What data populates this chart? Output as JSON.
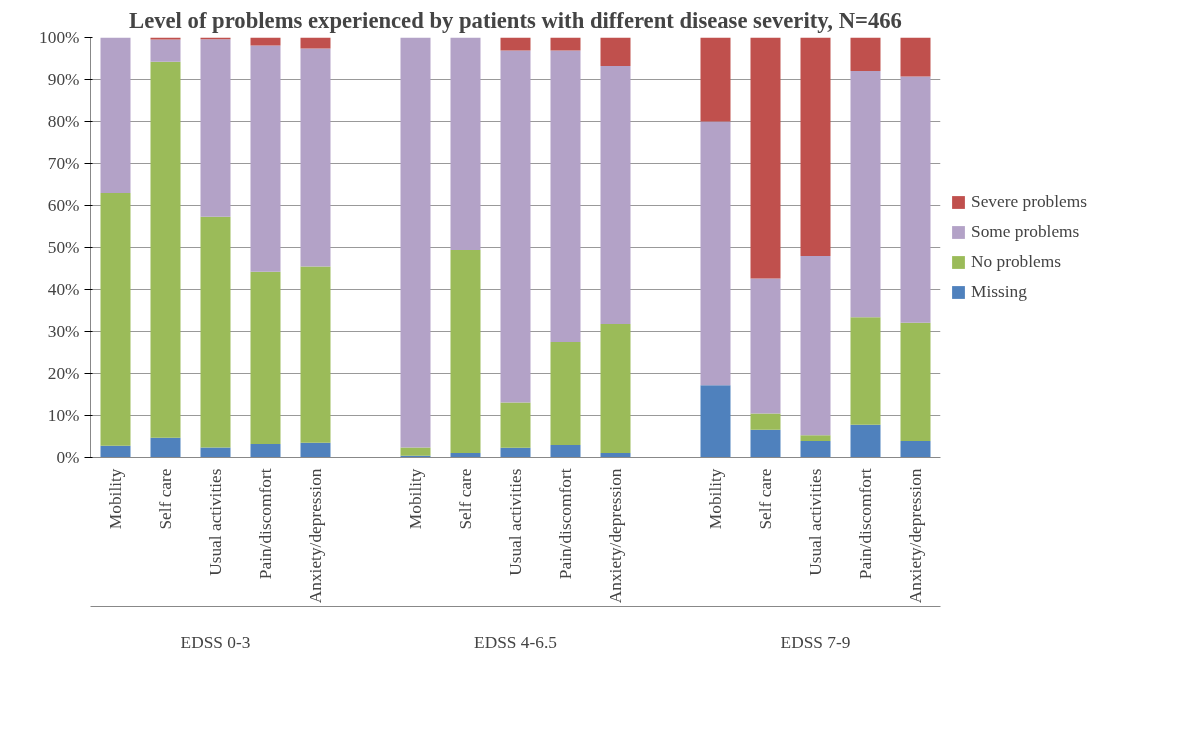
{
  "chart_data": {
    "type": "bar",
    "stacked": true,
    "title": "Level of problems experienced by patients with different disease severity, N=466",
    "categories": [
      "Mobility",
      "Self care",
      "Usual activities",
      "Pain/discomfort",
      "Anxiety/depression",
      null,
      "Mobility",
      "Self care",
      "Usual activities",
      "Pain/discomfort",
      "Anxiety/depression",
      null,
      "Mobility",
      "Self care",
      "Usual activities",
      "Pain/discomfort",
      "Anxiety/depression"
    ],
    "series": [
      {
        "name": "Missing",
        "color": "#4f81bd",
        "values": [
          2.8,
          4.7,
          2.4,
          3.2,
          3.5,
          null,
          0.4,
          1.1,
          2.3,
          3.0,
          1.1,
          null,
          17.2,
          6.6,
          3.9,
          7.8,
          3.9
        ]
      },
      {
        "name": "No problems",
        "color": "#9bbb59",
        "values": [
          60.2,
          89.5,
          54.9,
          41.0,
          42.0,
          null,
          2.0,
          48.3,
          10.8,
          24.5,
          30.7,
          null,
          0,
          3.9,
          1.4,
          25.6,
          28.2
        ]
      },
      {
        "name": "Some problems",
        "color": "#b3a2c7",
        "values": [
          37.0,
          5.3,
          42.3,
          53.9,
          51.9,
          null,
          97.6,
          50.6,
          83.8,
          69.4,
          61.4,
          null,
          62.8,
          32.1,
          42.7,
          58.6,
          58.6
        ]
      },
      {
        "name": "Severe problems",
        "color": "#c0504d",
        "values": [
          0,
          0.5,
          0.4,
          1.9,
          2.6,
          null,
          0,
          0,
          3.1,
          3.1,
          6.8,
          null,
          20.0,
          57.4,
          52.0,
          8.0,
          9.3
        ]
      }
    ],
    "annotations": [
      "EDSS 0-3",
      "EDSS 4-6.5",
      "EDSS 7-9"
    ],
    "ylim": [
      0,
      100
    ],
    "yticks": [
      {
        "value": 0,
        "label": "0%"
      },
      {
        "value": 10,
        "label": "10%"
      },
      {
        "value": 20,
        "label": "20%"
      },
      {
        "value": 30,
        "label": "30%"
      },
      {
        "value": 40,
        "label": "40%"
      },
      {
        "value": 50,
        "label": "50%"
      },
      {
        "value": 60,
        "label": "60%"
      },
      {
        "value": 70,
        "label": "70%"
      },
      {
        "value": 80,
        "label": "80%"
      },
      {
        "value": 90,
        "label": "90%"
      },
      {
        "value": 100,
        "label": "100%"
      }
    ],
    "grid": "y",
    "legend": "right"
  }
}
